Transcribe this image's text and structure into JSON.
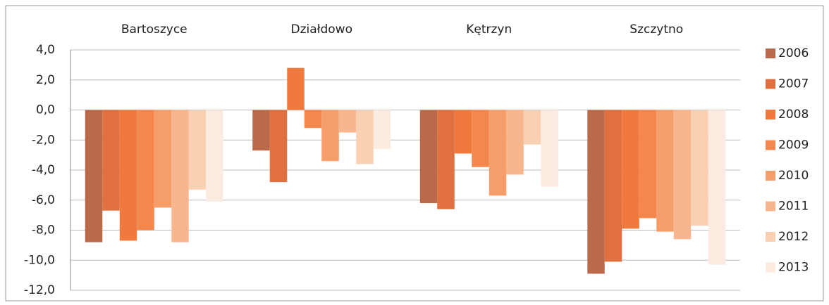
{
  "chart_data": {
    "type": "bar",
    "categories": [
      "Bartoszyce",
      "Działdowo",
      "Kętrzyn",
      "Szczytno"
    ],
    "series": [
      {
        "name": "2006",
        "color": "#b86a4a",
        "values": [
          -8.8,
          -2.7,
          -6.2,
          -10.9
        ]
      },
      {
        "name": "2007",
        "color": "#e0703f",
        "values": [
          -6.7,
          -4.8,
          -6.6,
          -10.1
        ]
      },
      {
        "name": "2008",
        "color": "#f07a3e",
        "values": [
          -8.7,
          2.8,
          -2.9,
          -7.9
        ]
      },
      {
        "name": "2009",
        "color": "#f4874c",
        "values": [
          -8.0,
          -1.2,
          -3.8,
          -7.2
        ]
      },
      {
        "name": "2010",
        "color": "#f59e6c",
        "values": [
          -6.5,
          -3.4,
          -5.7,
          -8.1
        ]
      },
      {
        "name": "2011",
        "color": "#f8b68e",
        "values": [
          -8.8,
          -1.5,
          -4.3,
          -8.6
        ]
      },
      {
        "name": "2012",
        "color": "#fad0b2",
        "values": [
          -5.3,
          -3.6,
          -2.3,
          -7.7
        ]
      },
      {
        "name": "2013",
        "color": "#fcebe0",
        "values": [
          -6.1,
          -2.6,
          -5.1,
          -10.3
        ]
      }
    ],
    "ylim": [
      -12,
      4
    ],
    "yticks": [
      {
        "value": -12,
        "label": "-12,0"
      },
      {
        "value": -10,
        "label": "-10,0"
      },
      {
        "value": -8,
        "label": "-8,0"
      },
      {
        "value": -6,
        "label": "-6,0"
      },
      {
        "value": -4,
        "label": "-4,0"
      },
      {
        "value": -2,
        "label": "-2,0"
      },
      {
        "value": 0,
        "label": "0,0"
      },
      {
        "value": 2,
        "label": "2,0"
      },
      {
        "value": 4,
        "label": "4,0"
      }
    ],
    "grid": true,
    "legend": "right"
  }
}
